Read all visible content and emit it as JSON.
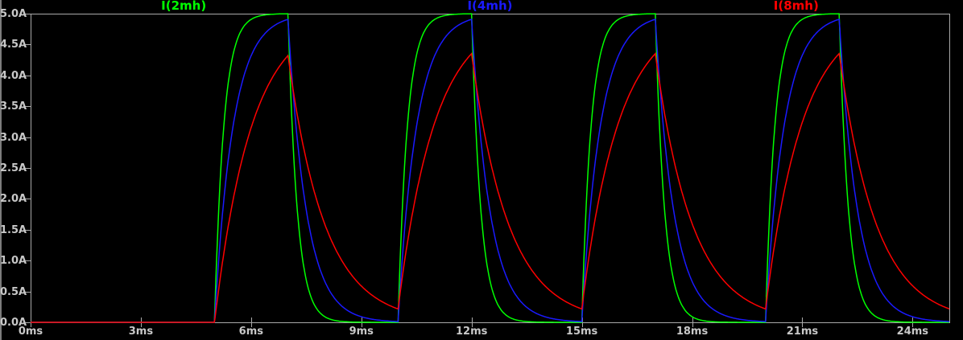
{
  "app": {
    "name": "waveform-viewer-pane"
  },
  "legend": {
    "items": [
      {
        "name": "I(2mh)",
        "color": "#00ff00"
      },
      {
        "name": "I(4mh)",
        "color": "#1a1aff"
      },
      {
        "name": "I(8mh)",
        "color": "#ff0000"
      }
    ]
  },
  "axes": {
    "text_color": "#c8c8c8",
    "line_color": "#a9a9a9",
    "x": {
      "unit": "ms",
      "range_ms": [
        0,
        25
      ],
      "tick_values_ms": [
        0,
        3,
        6,
        9,
        12,
        15,
        18,
        21,
        24
      ],
      "tick_labels": [
        "0ms",
        "3ms",
        "6ms",
        "9ms",
        "12ms",
        "15ms",
        "18ms",
        "21ms",
        "24ms"
      ]
    },
    "y": {
      "unit": "A",
      "range_A": [
        0,
        5
      ],
      "tick_values_A": [
        0,
        0.5,
        1,
        1.5,
        2,
        2.5,
        3,
        3.5,
        4,
        4.5,
        5
      ],
      "tick_labels": [
        "0.0A",
        "0.5A",
        "1.0A",
        "1.5A",
        "2.0A",
        "2.5A",
        "3.0A",
        "3.5A",
        "4.0A",
        "4.5A",
        "5.0A"
      ]
    }
  },
  "chart_data": {
    "type": "line",
    "title": "",
    "background": "#000000",
    "grid": false,
    "legend_position": "top",
    "xlim_ms": [
      0,
      25
    ],
    "ylim_A": [
      0,
      5
    ],
    "x_tick_labels": [
      "0ms",
      "3ms",
      "6ms",
      "9ms",
      "12ms",
      "15ms",
      "18ms",
      "21ms",
      "24ms"
    ],
    "y_tick_labels": [
      "0.0A",
      "0.5A",
      "1.0A",
      "1.5A",
      "2.0A",
      "2.5A",
      "3.0A",
      "3.5A",
      "4.0A",
      "4.5A",
      "5.0A"
    ],
    "drive": {
      "type": "pulse",
      "level_A": 5,
      "off_level_A": 0,
      "delay_ms": 5,
      "on_ms": 2,
      "period_ms": 5
    },
    "pulse_intervals_ms": [
      [
        5,
        7
      ],
      [
        10,
        12
      ],
      [
        15,
        17
      ],
      [
        20,
        22
      ]
    ],
    "series": [
      {
        "name": "I(2mh)",
        "inductance_mH": 2,
        "tau_ms": 0.25,
        "color": "#00ff00",
        "peak_A": 5.0,
        "value_at_0ms_A": 0
      },
      {
        "name": "I(4mh)",
        "inductance_mH": 4,
        "tau_ms": 0.5,
        "color": "#1a1aff",
        "peak_A": 4.9,
        "value_at_0ms_A": 0
      },
      {
        "name": "I(8mh)",
        "inductance_mH": 8,
        "tau_ms": 1.0,
        "color": "#ff0000",
        "peak_A": 4.3,
        "value_at_0ms_A": 0
      }
    ],
    "model": "current rises toward 5A with time constant tau during on-pulses and decays toward 0A with the same tau between pulses; all traces are 0A before 5ms"
  }
}
